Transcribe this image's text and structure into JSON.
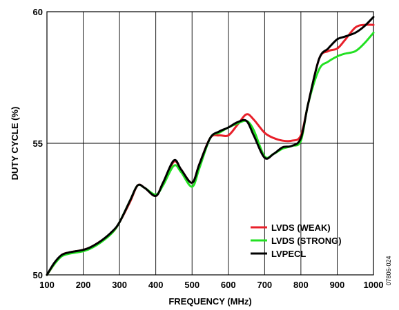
{
  "figure_id": "07806-024",
  "chart_data": {
    "type": "line",
    "title": "",
    "xlabel": "FREQUENCY (MHz)",
    "ylabel": "DUTY CYCLE (%)",
    "xlim": [
      100,
      1000
    ],
    "ylim": [
      50,
      60
    ],
    "x_ticks": [
      100,
      200,
      300,
      400,
      500,
      600,
      700,
      800,
      900,
      1000
    ],
    "y_ticks": [
      50,
      55,
      60
    ],
    "grid": true,
    "legend_position": "bottom-right",
    "series": [
      {
        "name": "LVDS (WEAK)",
        "color": "#e8202a",
        "x": [
          100,
          120,
          140,
          160,
          180,
          200,
          220,
          250,
          280,
          300,
          330,
          350,
          370,
          400,
          420,
          450,
          470,
          500,
          520,
          550,
          575,
          600,
          625,
          650,
          670,
          700,
          725,
          750,
          775,
          800,
          820,
          850,
          875,
          900,
          920,
          950,
          975,
          1000
        ],
        "y": [
          50.0,
          50.4,
          50.75,
          50.85,
          50.9,
          50.95,
          51.05,
          51.3,
          51.6,
          52.0,
          52.8,
          53.4,
          53.3,
          53.0,
          53.5,
          54.3,
          54.0,
          53.5,
          54.2,
          55.2,
          55.3,
          55.3,
          55.7,
          56.1,
          55.9,
          55.4,
          55.2,
          55.1,
          55.1,
          55.3,
          56.5,
          58.2,
          58.5,
          58.6,
          58.9,
          59.4,
          59.5,
          59.5
        ]
      },
      {
        "name": "LVDS (STRONG)",
        "color": "#22e022",
        "x": [
          100,
          120,
          140,
          160,
          180,
          200,
          220,
          250,
          280,
          300,
          330,
          350,
          370,
          400,
          420,
          450,
          470,
          500,
          520,
          550,
          575,
          600,
          625,
          650,
          670,
          700,
          725,
          750,
          775,
          800,
          820,
          850,
          875,
          900,
          920,
          950,
          975,
          1000
        ],
        "y": [
          50.0,
          50.4,
          50.7,
          50.8,
          50.85,
          50.9,
          51.0,
          51.25,
          51.6,
          52.0,
          52.85,
          53.4,
          53.3,
          53.05,
          53.4,
          54.15,
          53.9,
          53.35,
          54.05,
          55.2,
          55.4,
          55.6,
          55.75,
          55.85,
          55.5,
          54.5,
          54.6,
          54.8,
          54.9,
          55.1,
          56.5,
          57.8,
          58.1,
          58.3,
          58.4,
          58.5,
          58.8,
          59.2
        ]
      },
      {
        "name": "LVPECL",
        "color": "#000000",
        "x": [
          100,
          120,
          140,
          160,
          180,
          200,
          220,
          250,
          280,
          300,
          330,
          350,
          370,
          400,
          420,
          450,
          470,
          500,
          520,
          550,
          575,
          600,
          625,
          650,
          670,
          700,
          725,
          750,
          775,
          800,
          820,
          850,
          875,
          900,
          920,
          950,
          975,
          1000
        ],
        "y": [
          50.0,
          50.45,
          50.75,
          50.85,
          50.9,
          50.95,
          51.05,
          51.3,
          51.65,
          52.0,
          52.85,
          53.4,
          53.3,
          53.0,
          53.5,
          54.35,
          54.0,
          53.5,
          54.2,
          55.2,
          55.45,
          55.6,
          55.8,
          55.85,
          55.3,
          54.45,
          54.6,
          54.85,
          54.9,
          55.2,
          56.5,
          58.2,
          58.6,
          58.95,
          59.05,
          59.2,
          59.45,
          59.8
        ]
      }
    ]
  }
}
